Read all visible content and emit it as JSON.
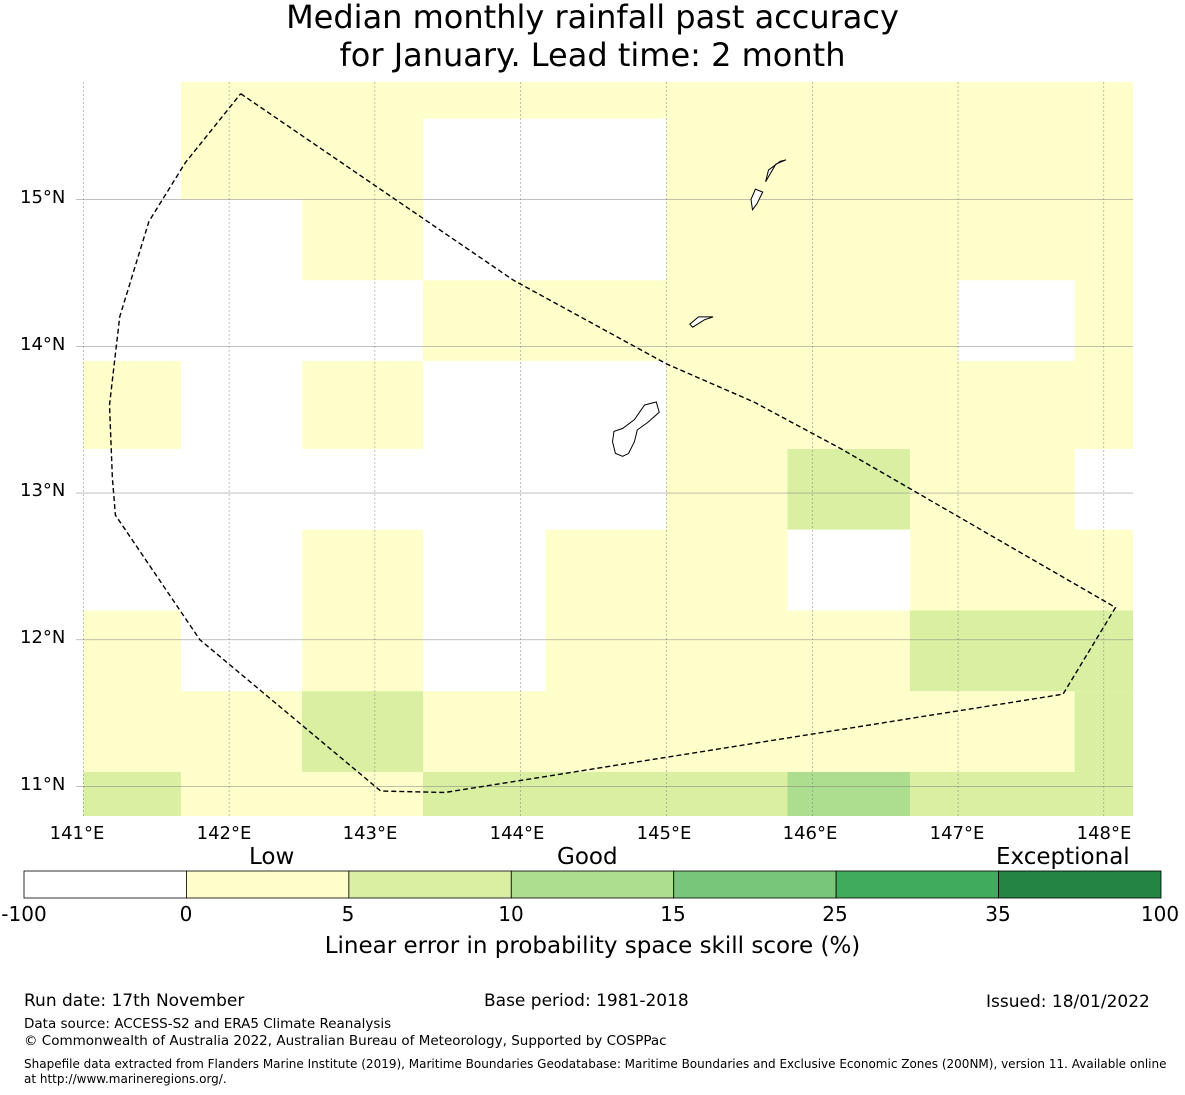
{
  "title": {
    "line1": "Median monthly rainfall past accuracy",
    "line2": "for January. Lead time: 2 month"
  },
  "map": {
    "lat_range": [
      10.8,
      15.8
    ],
    "lon_range": [
      140.95,
      148.2
    ],
    "lat_ticks": [
      "15°N",
      "14°N",
      "13°N",
      "12°N",
      "11°N"
    ],
    "lon_ticks": [
      "141°E",
      "142°E",
      "143°E",
      "144°E",
      "145°E",
      "146°E",
      "147°E",
      "148°E"
    ],
    "grid_cells": [
      {
        "lon": [
          141.0,
          141.67
        ],
        "lat": [
          15.55,
          15.8
        ],
        "class": 0
      },
      {
        "lon": [
          141.67,
          143.33
        ],
        "lat": [
          15.0,
          15.8
        ],
        "class": 1
      },
      {
        "lon": [
          143.33,
          145.0
        ],
        "lat": [
          15.55,
          15.8
        ],
        "class": 1
      },
      {
        "lon": [
          145.0,
          148.2
        ],
        "lat": [
          13.3,
          15.8
        ],
        "class": 1
      },
      {
        "lon": [
          142.5,
          143.33
        ],
        "lat": [
          14.45,
          15.0
        ],
        "class": 1
      },
      {
        "lon": [
          143.33,
          145.0
        ],
        "lat": [
          13.9,
          14.45
        ],
        "class": 1
      },
      {
        "lon": [
          141.0,
          141.67
        ],
        "lat": [
          13.3,
          13.9
        ],
        "class": 1
      },
      {
        "lon": [
          142.5,
          143.33
        ],
        "lat": [
          13.3,
          13.9
        ],
        "class": 1
      },
      {
        "lon": [
          147.0,
          147.8
        ],
        "lat": [
          13.9,
          14.45
        ],
        "class": 0
      },
      {
        "lon": [
          145.0,
          148.2
        ],
        "lat": [
          12.75,
          13.3
        ],
        "class": 1
      },
      {
        "lon": [
          145.83,
          146.67
        ],
        "lat": [
          12.75,
          13.3
        ],
        "class": 2
      },
      {
        "lon": [
          147.8,
          148.2
        ],
        "lat": [
          12.75,
          13.3
        ],
        "class": 0
      },
      {
        "lon": [
          142.5,
          143.33
        ],
        "lat": [
          11.65,
          12.75
        ],
        "class": 1
      },
      {
        "lon": [
          144.17,
          148.2
        ],
        "lat": [
          11.1,
          12.75
        ],
        "class": 1
      },
      {
        "lon": [
          145.83,
          146.67
        ],
        "lat": [
          12.2,
          12.75
        ],
        "class": 0
      },
      {
        "lon": [
          146.67,
          148.2
        ],
        "lat": [
          11.65,
          12.2
        ],
        "class": 2
      },
      {
        "lon": [
          141.0,
          141.67
        ],
        "lat": [
          11.1,
          12.2
        ],
        "class": 1
      },
      {
        "lon": [
          141.67,
          144.17
        ],
        "lat": [
          11.1,
          11.65
        ],
        "class": 1
      },
      {
        "lon": [
          142.5,
          143.33
        ],
        "lat": [
          11.1,
          11.65
        ],
        "class": 2
      },
      {
        "lon": [
          147.8,
          148.2
        ],
        "lat": [
          11.1,
          11.65
        ],
        "class": 2
      },
      {
        "lon": [
          141.0,
          141.67
        ],
        "lat": [
          10.8,
          11.1
        ],
        "class": 2
      },
      {
        "lon": [
          141.67,
          143.33
        ],
        "lat": [
          10.8,
          11.1
        ],
        "class": 1
      },
      {
        "lon": [
          143.33,
          148.2
        ],
        "lat": [
          10.8,
          11.1
        ],
        "class": 2
      },
      {
        "lon": [
          145.83,
          146.67
        ],
        "lat": [
          10.8,
          11.1
        ],
        "class": 3
      }
    ],
    "eez_boundary": [
      [
        142.08,
        15.72
      ],
      [
        143.95,
        14.45
      ],
      [
        145.0,
        13.88
      ],
      [
        145.6,
        13.62
      ],
      [
        146.2,
        13.3
      ],
      [
        148.08,
        12.22
      ],
      [
        147.72,
        11.63
      ],
      [
        143.48,
        10.96
      ],
      [
        143.04,
        10.97
      ],
      [
        141.8,
        12.0
      ],
      [
        141.22,
        12.85
      ],
      [
        141.2,
        13.1
      ],
      [
        141.18,
        13.6
      ],
      [
        141.25,
        14.2
      ],
      [
        141.45,
        14.85
      ],
      [
        141.7,
        15.25
      ],
      [
        142.08,
        15.72
      ]
    ],
    "islands": [
      [
        [
          144.93,
          13.62
        ],
        [
          144.95,
          13.55
        ],
        [
          144.87,
          13.48
        ],
        [
          144.8,
          13.43
        ],
        [
          144.78,
          13.35
        ],
        [
          144.74,
          13.27
        ],
        [
          144.7,
          13.25
        ],
        [
          144.65,
          13.27
        ],
        [
          144.63,
          13.35
        ],
        [
          144.64,
          13.42
        ],
        [
          144.7,
          13.44
        ],
        [
          144.78,
          13.5
        ],
        [
          144.85,
          13.6
        ]
      ],
      [
        [
          145.32,
          14.2
        ],
        [
          145.26,
          14.18
        ],
        [
          145.18,
          14.13
        ],
        [
          145.16,
          14.15
        ],
        [
          145.22,
          14.2
        ]
      ],
      [
        [
          145.82,
          15.27
        ],
        [
          145.75,
          15.24
        ],
        [
          145.68,
          15.12
        ],
        [
          145.7,
          15.2
        ],
        [
          145.78,
          15.26
        ]
      ],
      [
        [
          145.66,
          15.05
        ],
        [
          145.62,
          14.97
        ],
        [
          145.59,
          14.93
        ],
        [
          145.58,
          15.0
        ],
        [
          145.61,
          15.07
        ]
      ]
    ]
  },
  "legend": {
    "categories": [
      "Low",
      "Good",
      "Exceptional"
    ],
    "ticks": [
      "-100",
      "0",
      "5",
      "10",
      "15",
      "25",
      "35",
      "100"
    ],
    "colors": [
      "#ffffff",
      "#ffffcc",
      "#d9f0a3",
      "#addd8e",
      "#78c679",
      "#41ab5d",
      "#238443"
    ],
    "label": "Linear error in probability space skill score (%)"
  },
  "footer": {
    "run_date": "Run date: 17th November",
    "base_period": "Base period: 1981-2018",
    "issued": "Issued: 18/01/2022",
    "data_source": "Data source: ACCESS-S2 and ERA5 Climate Reanalysis",
    "copyright": "© Commonwealth of Australia 2022, Australian Bureau of Meteorology, Supported by COSPPac",
    "shapefile": "Shapefile data extracted from Flanders Marine Institute (2019), Maritime Boundaries Geodatabase: Maritime Boundaries and Exclusive Economic Zones (200NM), version 11. Available online at http://www.marineregions.org/."
  }
}
